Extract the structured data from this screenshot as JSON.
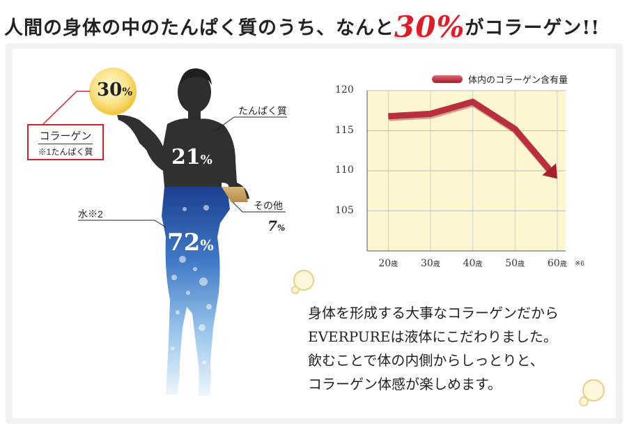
{
  "headline": {
    "prefix": "人間の身体の中のたんぱく質のうち、なんと",
    "highlight": "30%",
    "suffix": "がコラーゲン!!"
  },
  "body_composition": {
    "collagen_badge": {
      "value": "30",
      "unit": "%"
    },
    "collagen_box": {
      "top": "コラーゲン",
      "bottom": "※1たんぱく質"
    },
    "protein": {
      "label": "たんぱく質",
      "value": "21",
      "unit": "%"
    },
    "water": {
      "label": "水※2",
      "value": "72",
      "unit": "%"
    },
    "other": {
      "label": "その他",
      "value": "7",
      "unit": "%"
    }
  },
  "chart_data": {
    "type": "line",
    "legend": "体内のコラーゲン含有量",
    "x": [
      20,
      30,
      40,
      50,
      60
    ],
    "x_tick_labels": [
      "20",
      "30",
      "40",
      "50",
      "60"
    ],
    "x_unit": "歳",
    "x_note": "※6",
    "series": [
      {
        "name": "体内のコラーゲン含有量",
        "values": [
          116.8,
          117.1,
          118.6,
          115.2,
          109.0
        ]
      }
    ],
    "ylim": [
      100,
      120
    ],
    "y_ticks": [
      105,
      110,
      115,
      120
    ],
    "grid": true,
    "legend_position": "top-right"
  },
  "description": {
    "lines": [
      "身体を形成する大事なコラーゲンだから",
      "EVERPUREは液体にこだわりました。",
      "飲むことで体の内側からしっとりと、",
      "コラーゲン体感が楽しめます。"
    ]
  },
  "colors": {
    "accent": "#d81f2a",
    "chart_bg": "#fdf6d0",
    "series": "#b8303e"
  }
}
